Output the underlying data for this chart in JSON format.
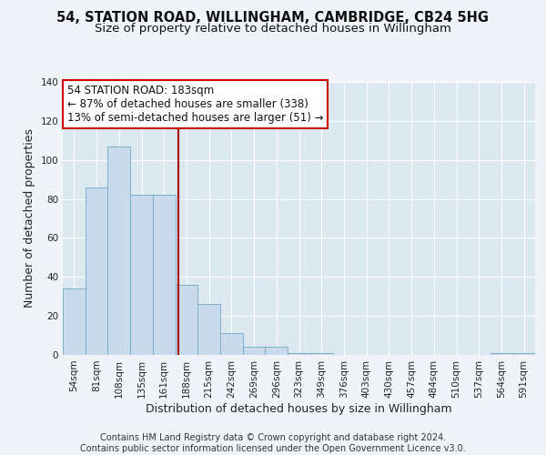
{
  "title_line1": "54, STATION ROAD, WILLINGHAM, CAMBRIDGE, CB24 5HG",
  "title_line2": "Size of property relative to detached houses in Willingham",
  "xlabel": "Distribution of detached houses by size in Willingham",
  "ylabel": "Number of detached properties",
  "bar_labels": [
    "54sqm",
    "81sqm",
    "108sqm",
    "135sqm",
    "161sqm",
    "188sqm",
    "215sqm",
    "242sqm",
    "269sqm",
    "296sqm",
    "323sqm",
    "349sqm",
    "376sqm",
    "403sqm",
    "430sqm",
    "457sqm",
    "484sqm",
    "510sqm",
    "537sqm",
    "564sqm",
    "591sqm"
  ],
  "bar_values": [
    34,
    86,
    107,
    82,
    82,
    36,
    26,
    11,
    4,
    4,
    1,
    1,
    0,
    0,
    0,
    0,
    0,
    0,
    0,
    1,
    1
  ],
  "bar_color": "#c9daea",
  "bar_edge_color": "#6fa8c8",
  "red_line_x": 4.63,
  "annotation_text": "54 STATION ROAD: 183sqm\n← 87% of detached houses are smaller (338)\n13% of semi-detached houses are larger (51) →",
  "annotation_box_color": "#ffffff",
  "annotation_box_edge": "#cc0000",
  "red_line_color": "#aa0000",
  "footer_line1": "Contains HM Land Registry data © Crown copyright and database right 2024.",
  "footer_line2": "Contains public sector information licensed under the Open Government Licence v3.0.",
  "fig_bg_color": "#f0f4f8",
  "plot_bg_color": "#dce8f0",
  "ylim": [
    0,
    140
  ],
  "yticks": [
    0,
    20,
    40,
    60,
    80,
    100,
    120,
    140
  ],
  "grid_color": "#ffffff",
  "title_fontsize": 10.5,
  "subtitle_fontsize": 9.5,
  "axis_label_fontsize": 9,
  "tick_fontsize": 7.5,
  "annotation_fontsize": 8.5,
  "footer_fontsize": 7
}
